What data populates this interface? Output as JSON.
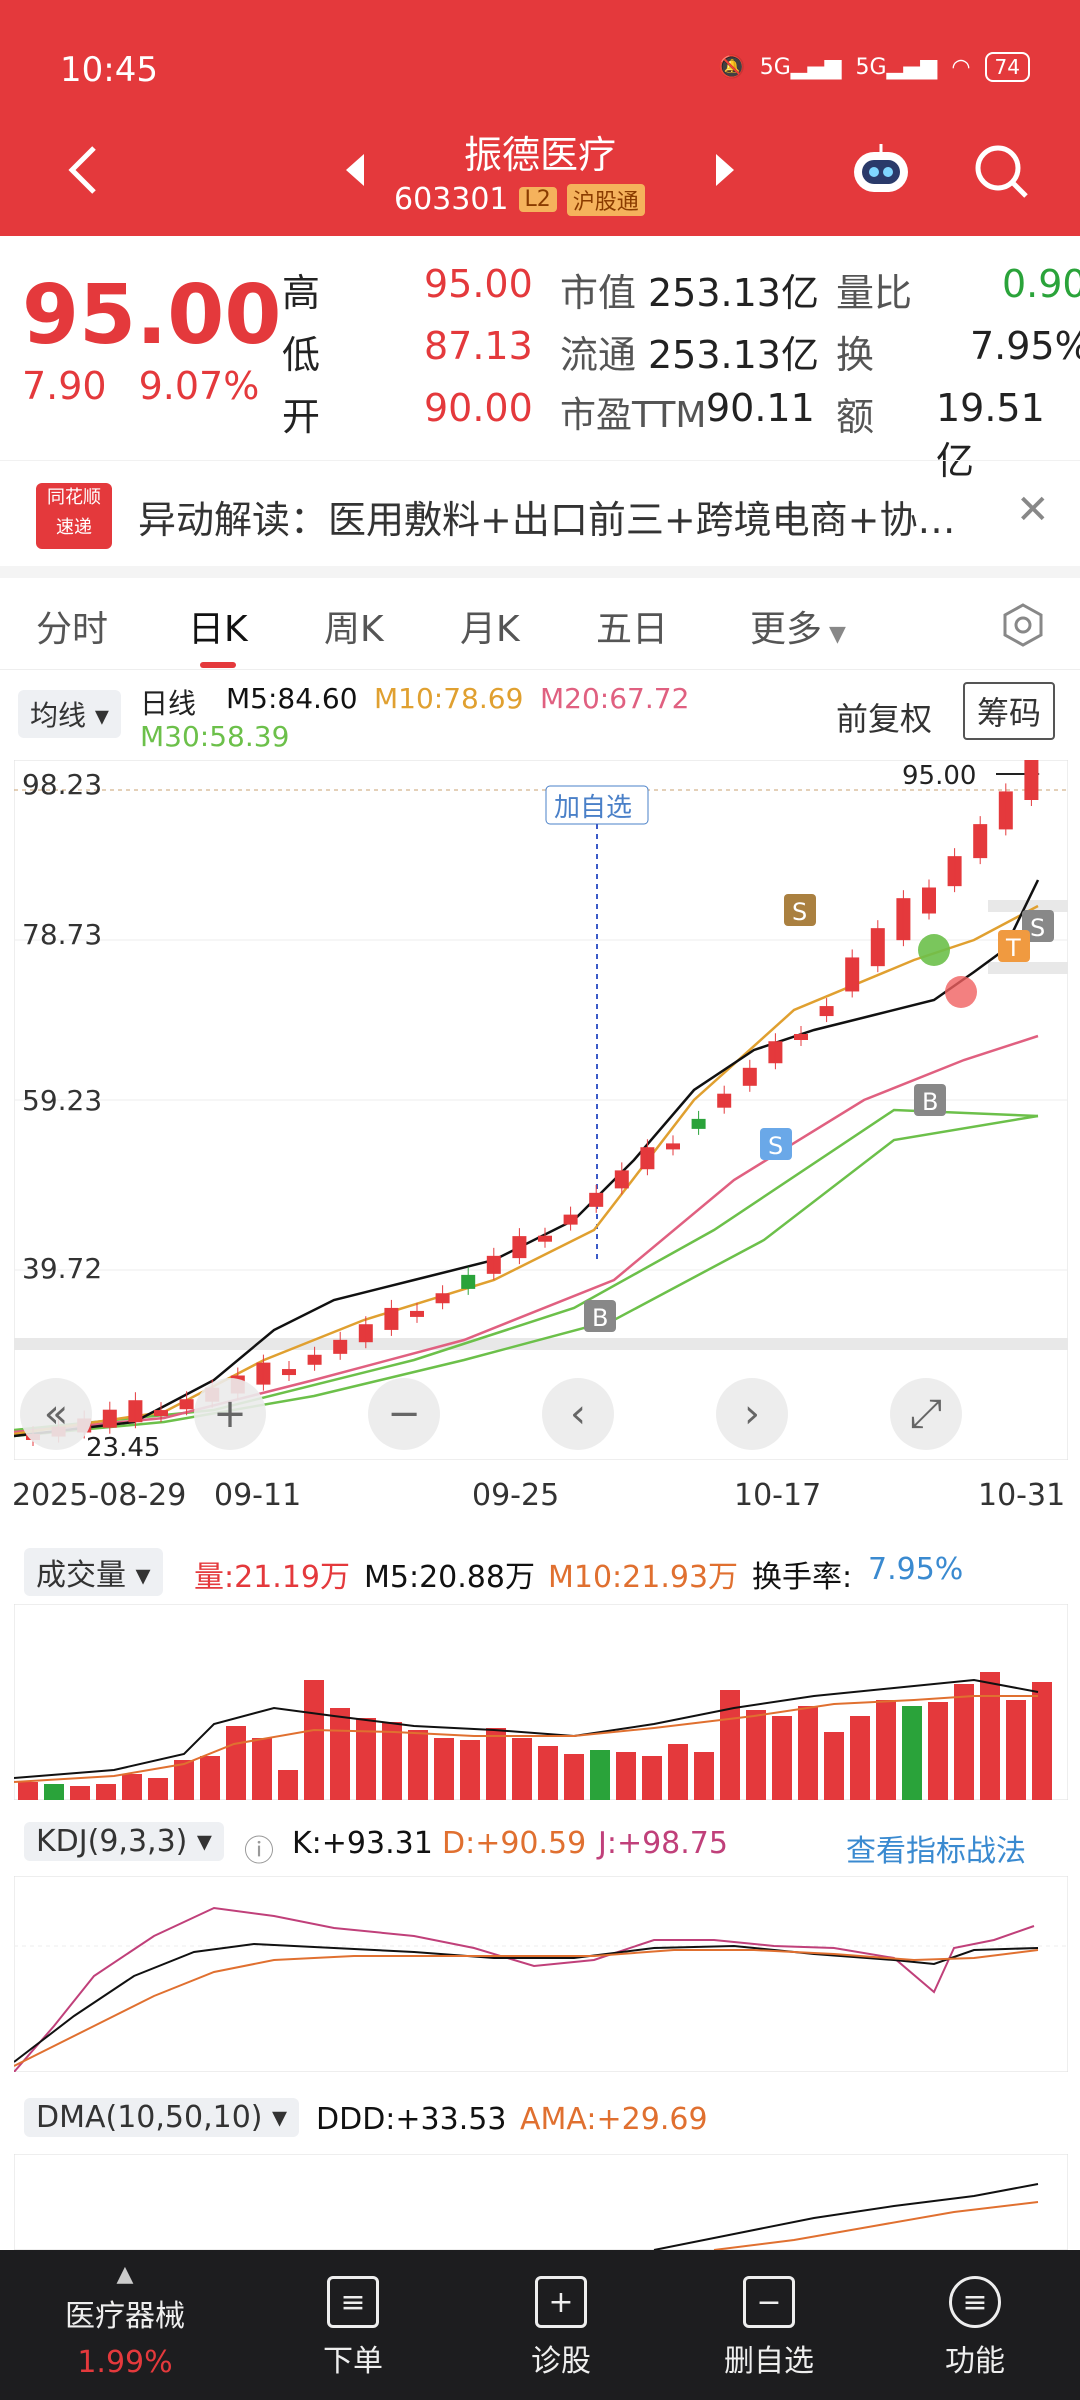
{
  "status_bar": {
    "time": "10:45",
    "net1": "5G",
    "net2": "5G",
    "battery": "74"
  },
  "header": {
    "title": "振德医疗",
    "code": "603301",
    "level_tag": "L2",
    "connect_tag": "沪股通"
  },
  "quote": {
    "price": "95.00",
    "change": "7.90",
    "change_pct": "9.07%",
    "high_label": "高",
    "high": "95.00",
    "low_label": "低",
    "low": "87.13",
    "open_label": "开",
    "open": "90.00",
    "mcap_label": "市值",
    "mcap": "253.13亿",
    "float_label": "流通",
    "float": "253.13亿",
    "pe_label": "市盈TTM",
    "pe": "90.11",
    "volratio_label": "量比",
    "volratio": "0.90",
    "turnover_label": "换",
    "turnover": "7.95%",
    "amount_label": "额",
    "amount": "19.51亿"
  },
  "news": {
    "logo_top": "同花顺",
    "logo_bottom": "速递",
    "text": "异动解读：医用敷料+出口前三+跨境电商+协…"
  },
  "tabs": [
    "分时",
    "日K",
    "周K",
    "月K",
    "五日",
    "更多"
  ],
  "active_tab": "日K",
  "kline_header": {
    "select": "均线",
    "period": "日线",
    "m5": "M5:84.60",
    "m10": "M10:78.69",
    "m20": "M20:67.72",
    "m30": "M30:58.39",
    "adjust": "前复权",
    "chips": "筹码"
  },
  "kline_axis": {
    "y_labels": [
      "98.23",
      "78.73",
      "59.23",
      "39.72"
    ],
    "max_price": "95.00",
    "min_price": "23.45",
    "add_watch": "加自选"
  },
  "dates": [
    "2025-08-29",
    "09-11",
    "09-25",
    "10-17",
    "10-31"
  ],
  "volume_header": {
    "select": "成交量",
    "vol": "量:21.19万",
    "m5": "M5:20.88万",
    "m10": "M10:21.93万",
    "turn_label": "换手率:",
    "turn": "7.95%"
  },
  "kdj_header": {
    "select": "KDJ(9,3,3)",
    "k": "K:+93.31",
    "d": "D:+90.59",
    "j": "J:+98.75",
    "link": "查看指标战法"
  },
  "dma_header": {
    "select": "DMA(10,50,10)",
    "ddd": "DDD:+33.53",
    "ama": "AMA:+29.69"
  },
  "bottom_bar": {
    "sector": "医疗器械",
    "sector_pct": "1.99%",
    "order": "下单",
    "diagnose": "诊股",
    "remove": "删自选",
    "func": "功能"
  },
  "colors": {
    "up": "#e4393c",
    "down": "#2aa33a",
    "m5": "#111111",
    "m10": "#e0a030",
    "m20": "#e06080",
    "m30": "#6cc04a"
  },
  "chart_data": {
    "type": "candlestick",
    "dates": [
      "2025-08-29",
      "09-11",
      "09-25",
      "10-17",
      "10-31"
    ],
    "last": {
      "open": 90.0,
      "high": 95.0,
      "low": 87.13,
      "close": 95.0
    },
    "moving_averages": {
      "M5": 84.6,
      "M10": 78.69,
      "M20": 67.72,
      "M30": 58.39
    },
    "ylim_labels": [
      98.23,
      78.73,
      59.23,
      39.72
    ]
  }
}
